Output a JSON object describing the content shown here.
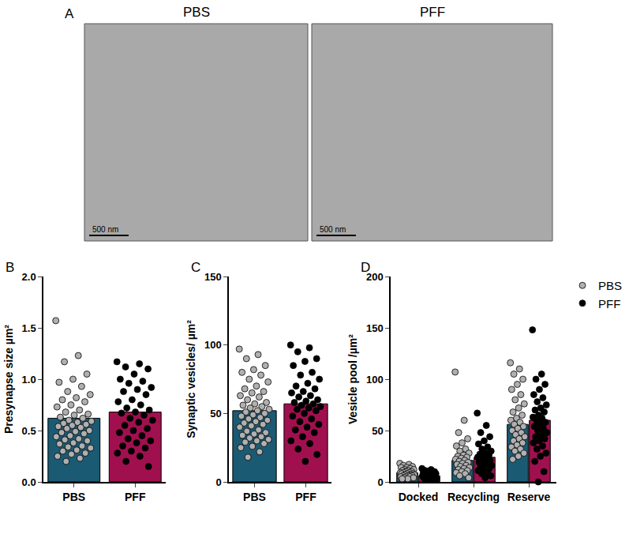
{
  "panel_a": {
    "label": "A",
    "images": [
      {
        "title": "PBS",
        "scale_bar": "500 nm"
      },
      {
        "title": "PFF",
        "scale_bar": "500 nm"
      }
    ]
  },
  "chart_data": [
    {
      "type": "bar",
      "annotations": [
        "B"
      ],
      "y_label": "Presynapse size µm²",
      "categories": [
        "PBS",
        "PFF"
      ],
      "series": [
        {
          "values": [
            0.62,
            0.68
          ],
          "colors": [
            "#1b5a73",
            "#a0104f"
          ]
        }
      ],
      "points": [
        {
          "color": "#b0b0b0",
          "values": [
            [
              1.57,
              1.23,
              1.17,
              1.05,
              1.0,
              0.97,
              0.93,
              0.88,
              0.85,
              0.82,
              0.8,
              0.78,
              0.75,
              0.73,
              0.7,
              0.68,
              0.66,
              0.65,
              0.63,
              0.62,
              0.6,
              0.59,
              0.58,
              0.57,
              0.56,
              0.55,
              0.54,
              0.53,
              0.52,
              0.5,
              0.49,
              0.48,
              0.47,
              0.45,
              0.44,
              0.42,
              0.41,
              0.4,
              0.38,
              0.37,
              0.35,
              0.34,
              0.33,
              0.31,
              0.3,
              0.28,
              0.27,
              0.25,
              0.23,
              0.2
            ],
            []
          ]
        },
        {
          "color": "#000000",
          "values": [
            [],
            [
              1.17,
              1.15,
              1.12,
              1.1,
              1.05,
              1.0,
              0.98,
              0.96,
              0.92,
              0.9,
              0.88,
              0.85,
              0.8,
              0.78,
              0.75,
              0.72,
              0.7,
              0.68,
              0.67,
              0.65,
              0.62,
              0.6,
              0.58,
              0.55,
              0.52,
              0.5,
              0.48,
              0.45,
              0.42,
              0.4,
              0.38,
              0.35,
              0.33,
              0.3,
              0.28,
              0.25,
              0.2,
              0.15
            ]
          ]
        }
      ],
      "ylim": [
        0,
        2.0
      ],
      "yticks": [
        {
          "value": 0,
          "label": "0.0"
        },
        {
          "value": 0.5,
          "label": "0.5"
        },
        {
          "value": 1.0,
          "label": "1.0"
        },
        {
          "value": 1.5,
          "label": "1.5"
        },
        {
          "value": 2.0,
          "label": "2.0"
        }
      ],
      "grid": false
    },
    {
      "type": "bar",
      "annotations": [
        "C"
      ],
      "y_label": "Synaptic vesicles/ µm²",
      "categories": [
        "PBS",
        "PFF"
      ],
      "series": [
        {
          "values": [
            52,
            57
          ],
          "colors": [
            "#1b5a73",
            "#a0104f"
          ]
        }
      ],
      "points": [
        {
          "color": "#b0b0b0",
          "values": [
            [
              97,
              93,
              90,
              85,
              82,
              80,
              78,
              75,
              73,
              70,
              68,
              66,
              65,
              63,
              62,
              60,
              58,
              57,
              56,
              55,
              54,
              53,
              52,
              51,
              50,
              49,
              48,
              47,
              46,
              45,
              44,
              43,
              42,
              41,
              40,
              38,
              37,
              36,
              35,
              34,
              33,
              32,
              31,
              30,
              29,
              28,
              26,
              25,
              22,
              18
            ],
            []
          ]
        },
        {
          "color": "#000000",
          "values": [
            [],
            [
              100,
              98,
              95,
              90,
              88,
              85,
              80,
              78,
              75,
              72,
              70,
              68,
              66,
              65,
              63,
              62,
              60,
              59,
              58,
              57,
              56,
              55,
              54,
              53,
              52,
              50,
              48,
              46,
              44,
              42,
              40,
              38,
              36,
              33,
              30,
              28,
              24,
              20,
              15
            ]
          ]
        }
      ],
      "ylim": [
        0,
        150
      ],
      "yticks": [
        0,
        50,
        100,
        150
      ],
      "grid": false
    },
    {
      "type": "bar",
      "annotations": [
        "D"
      ],
      "y_label": "Vesicle pool /µm²",
      "categories": [
        "Docked",
        "Recycling",
        "Reserve"
      ],
      "series": [
        {
          "values": [
            9,
            21,
            56
          ],
          "color": "#1b5a73"
        },
        {
          "values": [
            6,
            24,
            60
          ],
          "color": "#a0104f"
        }
      ],
      "points": [
        {
          "name": "PBS",
          "color": "#b0b0b0",
          "values": [
            [
              18,
              17,
              16,
              15,
              14,
              14,
              13,
              12,
              12,
              11,
              11,
              10,
              10,
              9,
              9,
              9,
              8,
              8,
              8,
              7,
              7,
              7,
              6,
              6,
              6,
              5,
              5,
              5,
              4,
              4,
              3,
              3
            ],
            [
              107,
              60,
              48,
              42,
              38,
              35,
              32,
              30,
              28,
              26,
              25,
              24,
              23,
              22,
              21,
              20,
              19,
              18,
              17,
              16,
              15,
              14,
              13,
              12,
              11,
              10,
              9,
              8,
              6,
              4
            ],
            [
              116,
              110,
              105,
              100,
              95,
              90,
              85,
              80,
              76,
              72,
              68,
              65,
              62,
              60,
              58,
              56,
              54,
              52,
              50,
              48,
              46,
              44,
              42,
              40,
              38,
              36,
              34,
              32,
              30,
              28,
              25,
              22
            ]
          ]
        },
        {
          "name": "PFF",
          "color": "#000000",
          "values": [
            [
              13,
              12,
              11,
              10,
              10,
              9,
              9,
              8,
              8,
              7,
              7,
              7,
              6,
              6,
              6,
              5,
              5,
              5,
              4,
              4,
              4,
              3,
              3,
              3,
              2,
              2
            ],
            [
              67,
              55,
              48,
              44,
              40,
              37,
              34,
              32,
              30,
              28,
              27,
              26,
              25,
              24,
              23,
              22,
              21,
              20,
              19,
              18,
              17,
              16,
              15,
              14,
              13,
              12,
              11,
              10,
              8,
              6,
              4
            ],
            [
              148,
              105,
              100,
              95,
              90,
              85,
              82,
              78,
              75,
              72,
              70,
              68,
              65,
              63,
              62,
              60,
              58,
              56,
              54,
              52,
              50,
              48,
              46,
              44,
              42,
              40,
              38,
              35,
              32,
              28,
              25,
              20,
              10,
              0
            ]
          ]
        }
      ],
      "ylim": [
        0,
        200
      ],
      "yticks": [
        0,
        50,
        100,
        150,
        200
      ],
      "grid": false,
      "legend": "right"
    }
  ]
}
